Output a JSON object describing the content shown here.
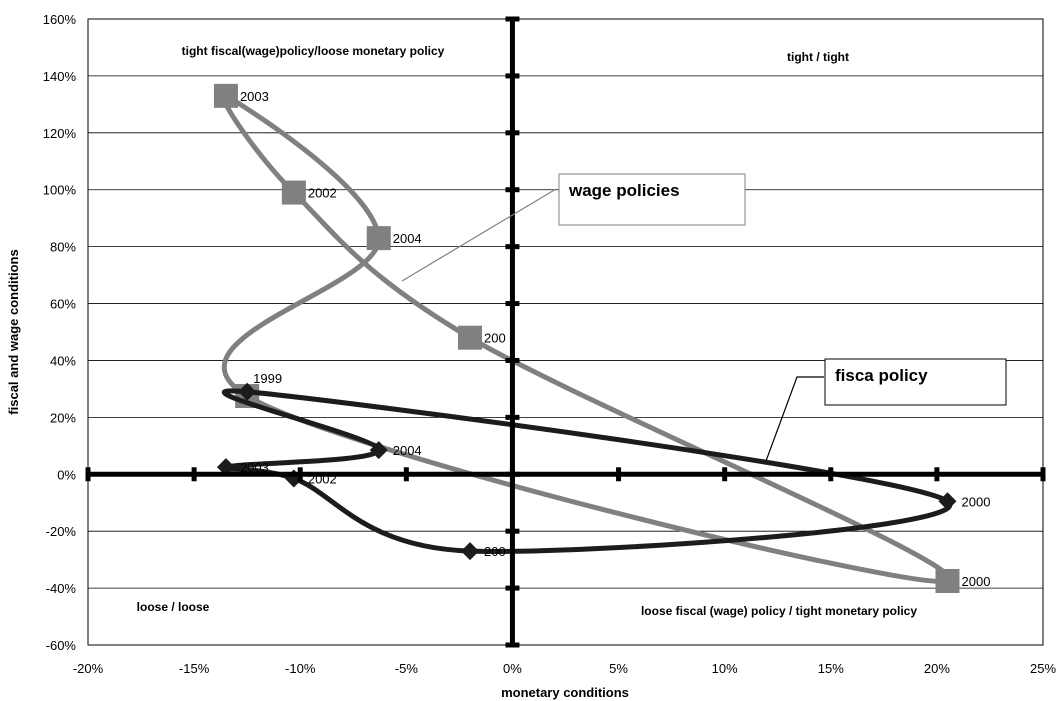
{
  "chart_data": {
    "type": "scatter",
    "xlabel": "monetary conditions",
    "ylabel": "fiscal and wage conditions",
    "xlim": [
      -0.2,
      0.25
    ],
    "ylim": [
      -0.6,
      1.6
    ],
    "x_ticks": [
      -0.2,
      -0.15,
      -0.1,
      -0.05,
      0,
      0.05,
      0.1,
      0.15,
      0.2,
      0.25
    ],
    "x_tick_labels": [
      "-20%",
      "-15%",
      "-10%",
      "-5%",
      "0%",
      "5%",
      "10%",
      "15%",
      "20%",
      "25%"
    ],
    "y_ticks": [
      -0.6,
      -0.4,
      -0.2,
      0,
      0.2,
      0.4,
      0.6,
      0.8,
      1.0,
      1.2,
      1.4,
      1.6
    ],
    "y_tick_labels": [
      "-60%",
      "-40%",
      "-20%",
      "0%",
      "20%",
      "40%",
      "60%",
      "80%",
      "100%",
      "120%",
      "140%",
      "160%"
    ],
    "grid": "horizontal",
    "quadrant_labels": {
      "top_left": "tight fiscal(wage)policy/loose monetary policy",
      "top_right": "tight / tight",
      "bottom_left": "loose / loose",
      "bottom_right": "loose fiscal (wage) policy / tight monetary  policy"
    },
    "series": [
      {
        "name": "fisca policy",
        "marker": "diamond",
        "color": "#1c1c1c",
        "points": [
          {
            "x": -0.125,
            "y": 0.29,
            "label": "1999"
          },
          {
            "x": 0.205,
            "y": -0.095,
            "label": "2000"
          },
          {
            "x": -0.02,
            "y": -0.27,
            "label": "200"
          },
          {
            "x": -0.103,
            "y": -0.015,
            "label": "2002"
          },
          {
            "x": -0.135,
            "y": 0.025,
            "label": "2003"
          },
          {
            "x": -0.063,
            "y": 0.085,
            "label": "2004"
          }
        ]
      },
      {
        "name": "wage policies",
        "marker": "square",
        "color": "#808080",
        "points": [
          {
            "x": -0.125,
            "y": 0.275,
            "label": ""
          },
          {
            "x": 0.205,
            "y": -0.375,
            "label": "2000"
          },
          {
            "x": -0.02,
            "y": 0.48,
            "label": "200"
          },
          {
            "x": -0.103,
            "y": 0.99,
            "label": "2002"
          },
          {
            "x": -0.135,
            "y": 1.33,
            "label": "2003"
          },
          {
            "x": -0.063,
            "y": 0.83,
            "label": "2004"
          }
        ]
      }
    ]
  }
}
